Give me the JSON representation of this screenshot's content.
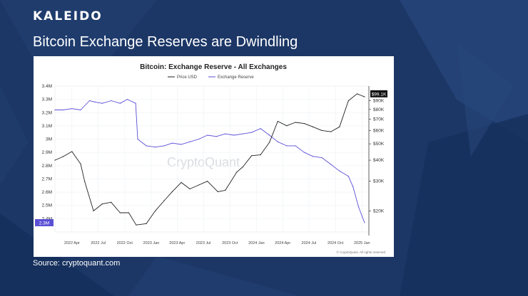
{
  "brand": {
    "logo_text": "KALEIDO"
  },
  "slide": {
    "title": "Bitcoin Exchange Reserves are Dwindling",
    "source": "Source: cryptoquant.com"
  },
  "colors": {
    "background": "#1c3766",
    "reserve_line": "#5b4fd6",
    "price_line": "#222222",
    "price_badge": "#111111",
    "reserve_badge": "#5b4fd6"
  },
  "chart_data": {
    "type": "line",
    "title": "Bitcoin: Exchange Reserve - All Exchanges",
    "watermark": "CryptoQuant",
    "copyright": "© CryptoQuant. All rights reserved",
    "legend": [
      "Price USD",
      "Exchange Reserve"
    ],
    "legend_position": "top-center",
    "grid": true,
    "x_ticks": [
      "2022 Apr",
      "2022 Jul",
      "2022 Oct",
      "2023 Jan",
      "2023 Apr",
      "2023 Jul",
      "2023 Oct",
      "2024 Jan",
      "2024 Apr",
      "2024 Jul",
      "2024 Oct",
      "2025 Jan"
    ],
    "y_left_ticks": [
      "3.4M",
      "3.3M",
      "3.2M",
      "3.1M",
      "3M",
      "2.9M",
      "2.8M",
      "2.7M",
      "2.6M",
      "2.5M",
      "2.4M"
    ],
    "y_left_range": [
      2300000,
      3400000
    ],
    "y_right_ticks": [
      "$90K",
      "$80K",
      "$70K",
      "$60K",
      "$50K",
      "$40K",
      "$30K",
      "$20K"
    ],
    "y_right_range": [
      15000,
      110000
    ],
    "y_right_scale": "log",
    "price_badge": "$99.1K",
    "reserve_badge": "2.3M",
    "series": [
      {
        "name": "Exchange Reserve",
        "axis": "left",
        "x": [
          "2022-02-01",
          "2022-03-01",
          "2022-04-01",
          "2022-05-01",
          "2022-06-01",
          "2022-06-20",
          "2022-07-15",
          "2022-08-15",
          "2022-09-15",
          "2022-10-10",
          "2022-11-08",
          "2022-11-15",
          "2022-12-15",
          "2023-01-15",
          "2023-02-15",
          "2023-03-15",
          "2023-04-15",
          "2023-05-15",
          "2023-06-15",
          "2023-07-15",
          "2023-08-15",
          "2023-09-15",
          "2023-10-15",
          "2023-11-15",
          "2023-12-15",
          "2024-01-15",
          "2024-02-15",
          "2024-03-15",
          "2024-04-15",
          "2024-05-15",
          "2024-06-15",
          "2024-07-15",
          "2024-08-15",
          "2024-09-15",
          "2024-10-15",
          "2024-11-15",
          "2024-12-01",
          "2024-12-20",
          "2025-01-10"
        ],
        "values": [
          3220000,
          3220000,
          3230000,
          3220000,
          3290000,
          3280000,
          3270000,
          3290000,
          3270000,
          3300000,
          3270000,
          3000000,
          2950000,
          2940000,
          2950000,
          2970000,
          2960000,
          2980000,
          3000000,
          3030000,
          3020000,
          3040000,
          3030000,
          3040000,
          3050000,
          3080000,
          3030000,
          2980000,
          2950000,
          2950000,
          2900000,
          2870000,
          2860000,
          2810000,
          2760000,
          2720000,
          2640000,
          2490000,
          2370000
        ]
      },
      {
        "name": "Price USD",
        "axis": "right",
        "x": [
          "2022-02-01",
          "2022-03-01",
          "2022-04-01",
          "2022-05-01",
          "2022-05-15",
          "2022-06-15",
          "2022-07-15",
          "2022-08-15",
          "2022-09-15",
          "2022-10-15",
          "2022-11-10",
          "2022-12-15",
          "2023-01-15",
          "2023-02-15",
          "2023-03-15",
          "2023-04-15",
          "2023-05-15",
          "2023-06-15",
          "2023-07-15",
          "2023-08-20",
          "2023-09-15",
          "2023-10-25",
          "2023-11-15",
          "2023-12-15",
          "2024-01-15",
          "2024-02-15",
          "2024-03-15",
          "2024-04-15",
          "2024-05-15",
          "2024-06-15",
          "2024-07-15",
          "2024-08-15",
          "2024-09-15",
          "2024-10-15",
          "2024-11-15",
          "2024-12-15",
          "2025-01-10"
        ],
        "values": [
          40000,
          42000,
          45000,
          38000,
          30000,
          20000,
          22000,
          22500,
          19500,
          19500,
          16500,
          16800,
          20000,
          23000,
          26000,
          29500,
          27000,
          28500,
          30000,
          26000,
          26500,
          34000,
          36500,
          42500,
          43000,
          51000,
          68000,
          64000,
          67000,
          66000,
          63000,
          60000,
          59000,
          63000,
          90000,
          99000,
          95000
        ]
      }
    ]
  }
}
